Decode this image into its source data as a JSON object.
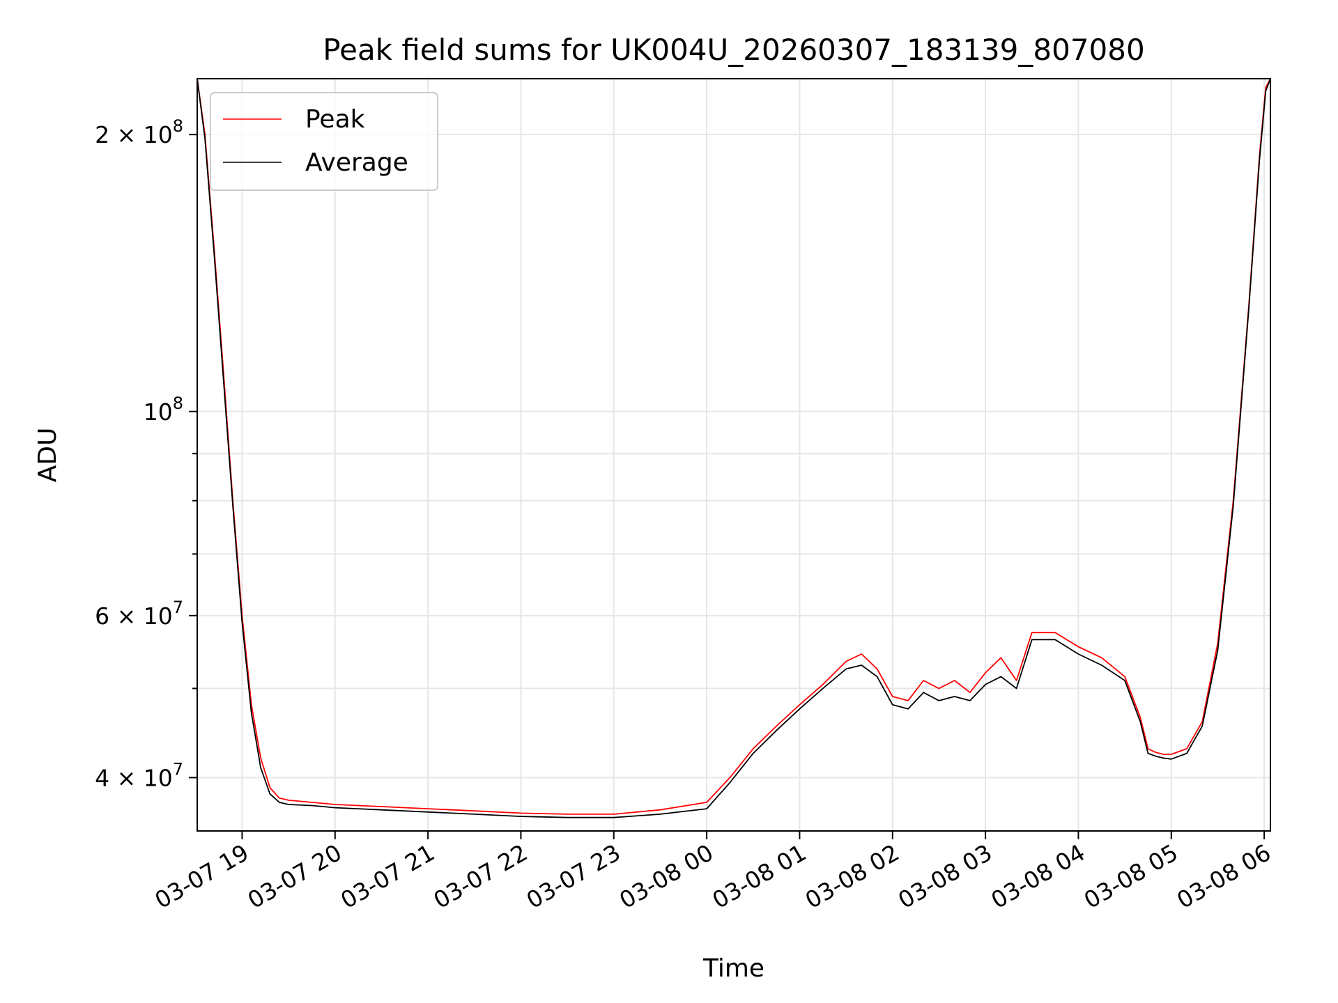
{
  "chart_data": {
    "type": "line",
    "title": "Peak field sums for UK004U_20260307_183139_807080",
    "xlabel": "Time",
    "ylabel": "ADU",
    "y_scale": "log",
    "ylim": [
      35000000,
      230000000
    ],
    "xlim": [
      "2026-03-07T18:31",
      "2026-03-08T06:04"
    ],
    "x_ticks": [
      {
        "t": "2026-03-07T19:00",
        "label": "03-07 19"
      },
      {
        "t": "2026-03-07T20:00",
        "label": "03-07 20"
      },
      {
        "t": "2026-03-07T21:00",
        "label": "03-07 21"
      },
      {
        "t": "2026-03-07T22:00",
        "label": "03-07 22"
      },
      {
        "t": "2026-03-07T23:00",
        "label": "03-07 23"
      },
      {
        "t": "2026-03-08T00:00",
        "label": "03-08 00"
      },
      {
        "t": "2026-03-08T01:00",
        "label": "03-08 01"
      },
      {
        "t": "2026-03-08T02:00",
        "label": "03-08 02"
      },
      {
        "t": "2026-03-08T03:00",
        "label": "03-08 03"
      },
      {
        "t": "2026-03-08T04:00",
        "label": "03-08 04"
      },
      {
        "t": "2026-03-08T05:00",
        "label": "03-08 05"
      },
      {
        "t": "2026-03-08T06:00",
        "label": "03-08 06"
      }
    ],
    "y_major_ticks": [
      {
        "value": 40000000,
        "base": "4 × 10",
        "exp": "7"
      },
      {
        "value": 60000000,
        "base": "6 × 10",
        "exp": "7"
      },
      {
        "value": 100000000,
        "base": "10",
        "exp": "8"
      },
      {
        "value": 200000000,
        "base": "2 × 10",
        "exp": "8"
      }
    ],
    "y_minor_ticks": [
      50000000,
      70000000,
      80000000,
      90000000
    ],
    "grid": true,
    "legend": {
      "position": "top-left"
    },
    "series": [
      {
        "name": "Peak",
        "color": "#ff0000",
        "x": [
          "2026-03-07T18:31",
          "2026-03-07T18:36",
          "2026-03-07T18:42",
          "2026-03-07T18:48",
          "2026-03-07T18:54",
          "2026-03-07T19:00",
          "2026-03-07T19:06",
          "2026-03-07T19:12",
          "2026-03-07T19:18",
          "2026-03-07T19:24",
          "2026-03-07T19:30",
          "2026-03-07T19:45",
          "2026-03-07T20:00",
          "2026-03-07T20:30",
          "2026-03-07T21:00",
          "2026-03-07T21:30",
          "2026-03-07T22:00",
          "2026-03-07T22:30",
          "2026-03-07T23:00",
          "2026-03-07T23:30",
          "2026-03-08T00:00",
          "2026-03-08T00:15",
          "2026-03-08T00:30",
          "2026-03-08T00:45",
          "2026-03-08T01:00",
          "2026-03-08T01:15",
          "2026-03-08T01:30",
          "2026-03-08T01:40",
          "2026-03-08T01:50",
          "2026-03-08T02:00",
          "2026-03-08T02:10",
          "2026-03-08T02:20",
          "2026-03-08T02:30",
          "2026-03-08T02:40",
          "2026-03-08T02:50",
          "2026-03-08T03:00",
          "2026-03-08T03:10",
          "2026-03-08T03:20",
          "2026-03-08T03:30",
          "2026-03-08T03:45",
          "2026-03-08T04:00",
          "2026-03-08T04:15",
          "2026-03-08T04:30",
          "2026-03-08T04:40",
          "2026-03-08T04:45",
          "2026-03-08T04:50",
          "2026-03-08T04:55",
          "2026-03-08T05:00",
          "2026-03-08T05:10",
          "2026-03-08T05:20",
          "2026-03-08T05:30",
          "2026-03-08T05:40",
          "2026-03-08T05:50",
          "2026-03-08T05:57",
          "2026-03-08T06:01",
          "2026-03-08T06:04"
        ],
        "y": [
          230000000,
          200000000,
          150000000,
          110000000,
          80000000,
          60000000,
          48000000,
          42000000,
          39000000,
          38000000,
          37800000,
          37600000,
          37400000,
          37200000,
          37000000,
          36800000,
          36600000,
          36500000,
          36500000,
          36900000,
          37600000,
          40000000,
          43000000,
          45500000,
          48000000,
          50500000,
          53500000,
          54500000,
          52500000,
          49000000,
          48500000,
          51000000,
          50000000,
          51000000,
          49500000,
          52000000,
          54000000,
          51000000,
          57500000,
          57500000,
          55500000,
          54000000,
          51500000,
          46500000,
          43000000,
          42600000,
          42400000,
          42400000,
          43000000,
          46000000,
          56000000,
          80000000,
          130000000,
          190000000,
          225000000,
          230000000
        ]
      },
      {
        "name": "Average",
        "color": "#000000",
        "x": [
          "2026-03-07T18:31",
          "2026-03-07T18:36",
          "2026-03-07T18:42",
          "2026-03-07T18:48",
          "2026-03-07T18:54",
          "2026-03-07T19:00",
          "2026-03-07T19:06",
          "2026-03-07T19:12",
          "2026-03-07T19:18",
          "2026-03-07T19:24",
          "2026-03-07T19:30",
          "2026-03-07T19:45",
          "2026-03-07T20:00",
          "2026-03-07T20:30",
          "2026-03-07T21:00",
          "2026-03-07T21:30",
          "2026-03-07T22:00",
          "2026-03-07T22:30",
          "2026-03-07T23:00",
          "2026-03-07T23:30",
          "2026-03-08T00:00",
          "2026-03-08T00:15",
          "2026-03-08T00:30",
          "2026-03-08T00:45",
          "2026-03-08T01:00",
          "2026-03-08T01:15",
          "2026-03-08T01:30",
          "2026-03-08T01:40",
          "2026-03-08T01:50",
          "2026-03-08T02:00",
          "2026-03-08T02:10",
          "2026-03-08T02:20",
          "2026-03-08T02:30",
          "2026-03-08T02:40",
          "2026-03-08T02:50",
          "2026-03-08T03:00",
          "2026-03-08T03:10",
          "2026-03-08T03:20",
          "2026-03-08T03:30",
          "2026-03-08T03:45",
          "2026-03-08T04:00",
          "2026-03-08T04:15",
          "2026-03-08T04:30",
          "2026-03-08T04:40",
          "2026-03-08T04:45",
          "2026-03-08T04:50",
          "2026-03-08T04:55",
          "2026-03-08T05:00",
          "2026-03-08T05:10",
          "2026-03-08T05:20",
          "2026-03-08T05:30",
          "2026-03-08T05:40",
          "2026-03-08T05:50",
          "2026-03-08T05:57",
          "2026-03-08T06:01",
          "2026-03-08T06:04"
        ],
        "y": [
          230000000,
          198000000,
          148000000,
          108000000,
          79000000,
          59000000,
          47000000,
          41000000,
          38400000,
          37600000,
          37400000,
          37300000,
          37100000,
          36900000,
          36700000,
          36500000,
          36300000,
          36200000,
          36200000,
          36500000,
          37000000,
          39500000,
          42500000,
          45000000,
          47500000,
          50000000,
          52500000,
          53000000,
          51500000,
          48000000,
          47500000,
          49500000,
          48500000,
          49000000,
          48500000,
          50500000,
          51500000,
          50000000,
          56500000,
          56500000,
          54500000,
          53000000,
          51000000,
          46000000,
          42500000,
          42200000,
          42000000,
          41900000,
          42500000,
          45500000,
          55000000,
          79000000,
          129000000,
          188000000,
          223000000,
          230000000
        ]
      }
    ]
  }
}
